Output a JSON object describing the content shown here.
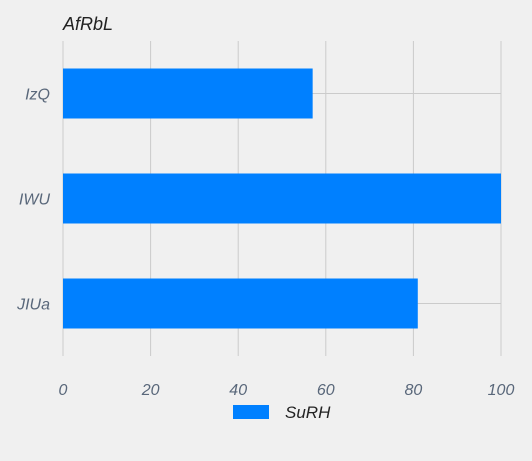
{
  "chart_data": {
    "type": "bar",
    "orientation": "horizontal",
    "title": "AfRbL",
    "categories": [
      "IzQ",
      "IWU",
      "JIUa"
    ],
    "series": [
      {
        "name": "SuRH",
        "values": [
          57,
          100,
          81
        ],
        "color": "#0080ff"
      }
    ],
    "xlim": [
      0,
      100
    ],
    "xticks": [
      0,
      20,
      40,
      60,
      80,
      100
    ],
    "grid": true,
    "legend_position": "bottom-center"
  },
  "colors": {
    "background": "#f0f0f0",
    "grid": "#cbcbcb",
    "tick_text": "#59677a",
    "title_text": "#222222",
    "bar": "#0080ff"
  }
}
